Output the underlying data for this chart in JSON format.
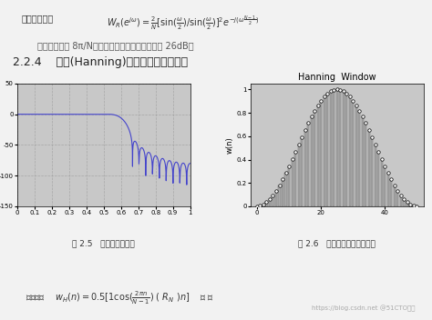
{
  "fig_width": 4.74,
  "fig_height": 3.52,
  "dpi": 100,
  "bg_color": "#f0f0f0",
  "text_color": "#333333",
  "header_text1": "其频率响应：$W_R(e^{j\\omega}) = \\frac{2}{N}[\\sin(\\frac{\\omega}{2})/\\sin(\\frac{\\omega}{2})]^2 e^{-j(\\omega\\frac{N-1}{2})}$",
  "header_text2": "其主瓣宽度为 8π/N，第一旁瓣宽度比第一主瓣低 26dB。",
  "section_title": "2.2.4    汉宁(Hanning)窗（又称升余弦窗）",
  "left_caption": "图 2.5   滤波器频率响应",
  "right_caption": "图 2.6   汉宁窗函数的脉冲响应",
  "bottom_text": "窗函数：    $w_H(n)= 0.5[1 \\frac{\\cos(\\frac{2\\pi n}{N-1})}{} ( R_N )n]$    （ ）",
  "left_plot": {
    "xlim": [
      0,
      1
    ],
    "ylim": [
      -150,
      50
    ],
    "xticks": [
      0,
      0.1,
      0.2,
      0.3,
      0.4,
      0.5,
      0.6,
      0.7,
      0.8,
      0.9,
      1
    ],
    "yticks": [
      50,
      0,
      -50,
      -100,
      -150
    ],
    "grid_color": "#999999",
    "line_color": "#4444cc",
    "bg_color": "#c8c8c8"
  },
  "right_plot": {
    "title": "Hanning  Window",
    "xlim": [
      0,
      50
    ],
    "ylim": [
      0,
      1.05
    ],
    "xticks": [
      0,
      20,
      40
    ],
    "yticks": [
      0,
      0.2,
      0.4,
      0.6,
      0.8,
      1
    ],
    "ylabel": "w(n)",
    "N": 51,
    "bar_color": "#888888",
    "circle_color": "#000000",
    "bg_color": "#c8c8c8"
  },
  "watermark": "https://blog.csdn.net @51CTO博客"
}
